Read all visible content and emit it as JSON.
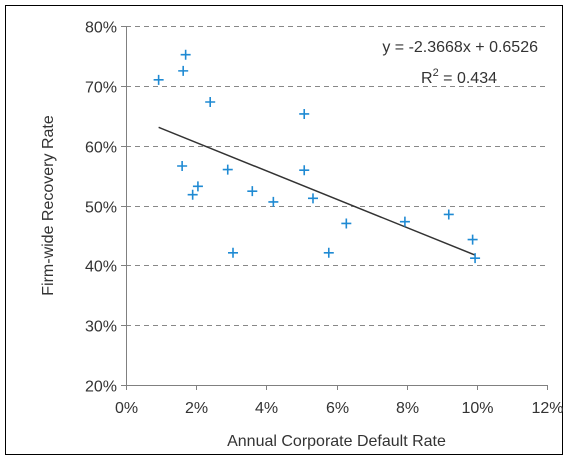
{
  "chart_data": {
    "type": "scatter",
    "xlabel": "Annual Corporate Default Rate",
    "ylabel": "Firm-wide Recovery Rate",
    "xlim": [
      0,
      0.12
    ],
    "ylim": [
      0.2,
      0.8
    ],
    "x_ticks": [
      {
        "value": 0.0,
        "label": "0%"
      },
      {
        "value": 0.02,
        "label": "2%"
      },
      {
        "value": 0.04,
        "label": "4%"
      },
      {
        "value": 0.06,
        "label": "6%"
      },
      {
        "value": 0.08,
        "label": "8%"
      },
      {
        "value": 0.1,
        "label": "10%"
      },
      {
        "value": 0.12,
        "label": "12%"
      }
    ],
    "y_ticks": [
      {
        "value": 0.2,
        "label": "20%"
      },
      {
        "value": 0.3,
        "label": "30%"
      },
      {
        "value": 0.4,
        "label": "40%"
      },
      {
        "value": 0.5,
        "label": "50%"
      },
      {
        "value": 0.6,
        "label": "60%"
      },
      {
        "value": 0.7,
        "label": "70%"
      },
      {
        "value": 0.8,
        "label": "80%"
      }
    ],
    "grid": "horizontal-dashed",
    "marker_color": "#1f8ad3",
    "trendline_color": "#333333",
    "points": [
      [
        0.0093,
        0.71
      ],
      [
        0.0163,
        0.725
      ],
      [
        0.017,
        0.752
      ],
      [
        0.024,
        0.673
      ],
      [
        0.016,
        0.566
      ],
      [
        0.0205,
        0.532
      ],
      [
        0.019,
        0.518
      ],
      [
        0.029,
        0.56
      ],
      [
        0.0305,
        0.421
      ],
      [
        0.036,
        0.524
      ],
      [
        0.042,
        0.506
      ],
      [
        0.0508,
        0.653
      ],
      [
        0.0508,
        0.559
      ],
      [
        0.0533,
        0.512
      ],
      [
        0.0578,
        0.421
      ],
      [
        0.0628,
        0.47
      ],
      [
        0.0795,
        0.473
      ],
      [
        0.092,
        0.485
      ],
      [
        0.0988,
        0.443
      ],
      [
        0.0995,
        0.412
      ]
    ],
    "trendline": {
      "slope": -2.3668,
      "intercept": 0.6526,
      "x_range": [
        0.0093,
        0.0995
      ],
      "equation": "y = -2.3668x + 0.6526",
      "r2_prefix": "R",
      "r2_superscript": "2",
      "r2_value": " = 0.434"
    }
  }
}
